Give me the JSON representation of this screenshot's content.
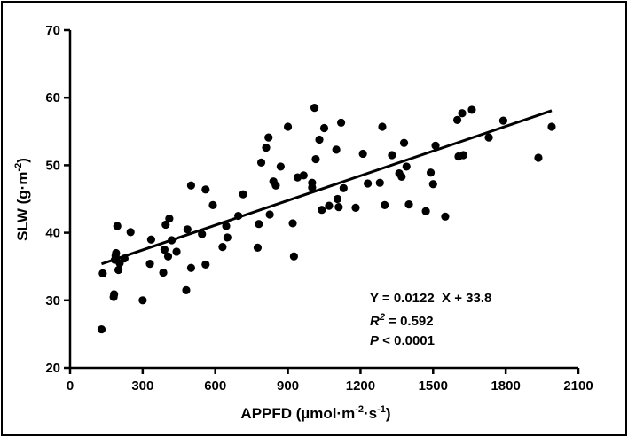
{
  "chart_data": {
    "type": "scatter",
    "title": "",
    "xlabel": {
      "prefix": "APPFD (",
      "mu": "µ",
      "unit_main": "mol·m",
      "exp1": "-2",
      "mid": "·s",
      "exp2": "-1",
      "suffix": ")"
    },
    "ylabel": {
      "prefix": "SLW (g·m",
      "exp": "-2",
      "suffix": ")"
    },
    "xlim": [
      0,
      2100
    ],
    "ylim": [
      20,
      70
    ],
    "xticks": [
      0,
      300,
      600,
      900,
      1200,
      1500,
      1800,
      2100
    ],
    "yticks": [
      20,
      30,
      40,
      50,
      60,
      70
    ],
    "grid": false,
    "point_color": "#000000",
    "line_color": "#000000",
    "regression": {
      "slope": 0.0122,
      "intercept": 33.8,
      "x_range": [
        130,
        1990
      ]
    },
    "annotations": {
      "equation": "Y = 0.0122  X + 33.8",
      "r2_symbol": "R",
      "r2_exp": "2",
      "r2_rest": " = 0.592",
      "p_symbol": "P",
      "p_rest": " < 0.0001"
    },
    "series": [
      {
        "name": "data",
        "points": [
          [
            130,
            25.7
          ],
          [
            135,
            34.0
          ],
          [
            180,
            30.5
          ],
          [
            182,
            30.9
          ],
          [
            185,
            36.0
          ],
          [
            188,
            36.6
          ],
          [
            190,
            37.0
          ],
          [
            195,
            41.0
          ],
          [
            200,
            34.5
          ],
          [
            205,
            35.5
          ],
          [
            225,
            36.2
          ],
          [
            250,
            40.1
          ],
          [
            300,
            30.0
          ],
          [
            330,
            35.4
          ],
          [
            335,
            39.0
          ],
          [
            385,
            34.1
          ],
          [
            390,
            37.5
          ],
          [
            395,
            41.2
          ],
          [
            405,
            36.5
          ],
          [
            410,
            42.1
          ],
          [
            420,
            38.9
          ],
          [
            440,
            37.2
          ],
          [
            480,
            31.5
          ],
          [
            485,
            40.5
          ],
          [
            500,
            47.0
          ],
          [
            500,
            34.8
          ],
          [
            545,
            39.8
          ],
          [
            560,
            35.3
          ],
          [
            560,
            46.4
          ],
          [
            590,
            44.1
          ],
          [
            630,
            37.9
          ],
          [
            645,
            41.0
          ],
          [
            650,
            39.3
          ],
          [
            695,
            42.5
          ],
          [
            715,
            45.7
          ],
          [
            775,
            37.8
          ],
          [
            780,
            41.3
          ],
          [
            790,
            50.4
          ],
          [
            810,
            52.6
          ],
          [
            820,
            54.1
          ],
          [
            825,
            42.7
          ],
          [
            840,
            47.6
          ],
          [
            850,
            47.0
          ],
          [
            870,
            49.8
          ],
          [
            900,
            55.7
          ],
          [
            920,
            41.4
          ],
          [
            925,
            36.5
          ],
          [
            940,
            48.2
          ],
          [
            965,
            48.5
          ],
          [
            1000,
            46.7
          ],
          [
            1000,
            47.4
          ],
          [
            1010,
            58.5
          ],
          [
            1015,
            50.9
          ],
          [
            1030,
            53.8
          ],
          [
            1040,
            43.4
          ],
          [
            1050,
            55.5
          ],
          [
            1070,
            44.0
          ],
          [
            1100,
            52.3
          ],
          [
            1105,
            45.0
          ],
          [
            1110,
            43.8
          ],
          [
            1120,
            56.3
          ],
          [
            1130,
            46.6
          ],
          [
            1180,
            43.7
          ],
          [
            1210,
            51.7
          ],
          [
            1230,
            47.3
          ],
          [
            1280,
            47.4
          ],
          [
            1290,
            55.7
          ],
          [
            1300,
            44.1
          ],
          [
            1330,
            51.5
          ],
          [
            1360,
            48.8
          ],
          [
            1370,
            48.3
          ],
          [
            1380,
            53.3
          ],
          [
            1390,
            49.8
          ],
          [
            1400,
            44.2
          ],
          [
            1470,
            43.2
          ],
          [
            1490,
            48.9
          ],
          [
            1500,
            47.2
          ],
          [
            1510,
            52.9
          ],
          [
            1550,
            42.4
          ],
          [
            1600,
            56.7
          ],
          [
            1605,
            51.3
          ],
          [
            1620,
            57.7
          ],
          [
            1625,
            51.5
          ],
          [
            1660,
            58.2
          ],
          [
            1730,
            54.1
          ],
          [
            1790,
            56.6
          ],
          [
            1935,
            51.1
          ],
          [
            1990,
            55.7
          ]
        ]
      }
    ]
  }
}
